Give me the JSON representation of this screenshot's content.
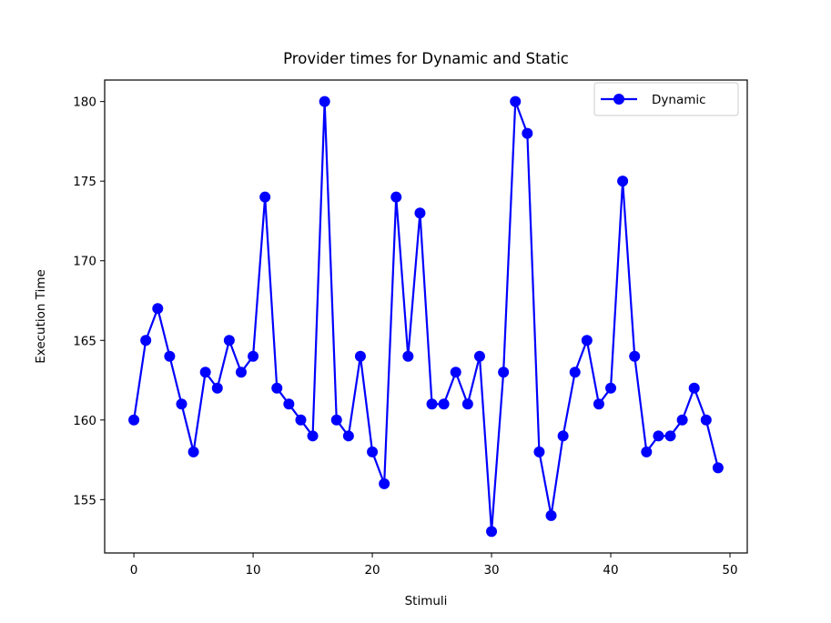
{
  "chart_data": {
    "type": "line",
    "title": "Provider times for Dynamic and Static",
    "xlabel": "Stimuli",
    "ylabel": "Execution Time",
    "xlim": [
      -2.45,
      51.45
    ],
    "ylim": [
      151.65,
      181.35
    ],
    "xticks": [
      0,
      10,
      20,
      30,
      40,
      50
    ],
    "yticks": [
      155,
      160,
      165,
      170,
      175,
      180
    ],
    "xtick_labels": [
      "0",
      "10",
      "20",
      "30",
      "40",
      "50"
    ],
    "ytick_labels": [
      "155",
      "160",
      "165",
      "170",
      "175",
      "180"
    ],
    "grid": false,
    "legend": {
      "position": "top-right",
      "entries": [
        "Dynamic"
      ]
    },
    "series": [
      {
        "name": "Dynamic",
        "color": "#0000ff",
        "marker": "circle",
        "x": [
          0,
          1,
          2,
          3,
          4,
          5,
          6,
          7,
          8,
          9,
          10,
          11,
          12,
          13,
          14,
          15,
          16,
          17,
          18,
          19,
          20,
          21,
          22,
          23,
          24,
          25,
          26,
          27,
          28,
          29,
          30,
          31,
          32,
          33,
          34,
          35,
          36,
          37,
          38,
          39,
          40,
          41,
          42,
          43,
          44,
          45,
          46,
          47,
          48,
          49
        ],
        "values": [
          160,
          165,
          167,
          164,
          161,
          158,
          163,
          162,
          165,
          163,
          164,
          174,
          162,
          161,
          160,
          159,
          180,
          160,
          159,
          164,
          158,
          156,
          174,
          164,
          173,
          161,
          161,
          163,
          161,
          164,
          153,
          163,
          180,
          178,
          158,
          154,
          159,
          163,
          165,
          161,
          162,
          175,
          164,
          158,
          159,
          159,
          160,
          162,
          160,
          157
        ]
      }
    ]
  }
}
